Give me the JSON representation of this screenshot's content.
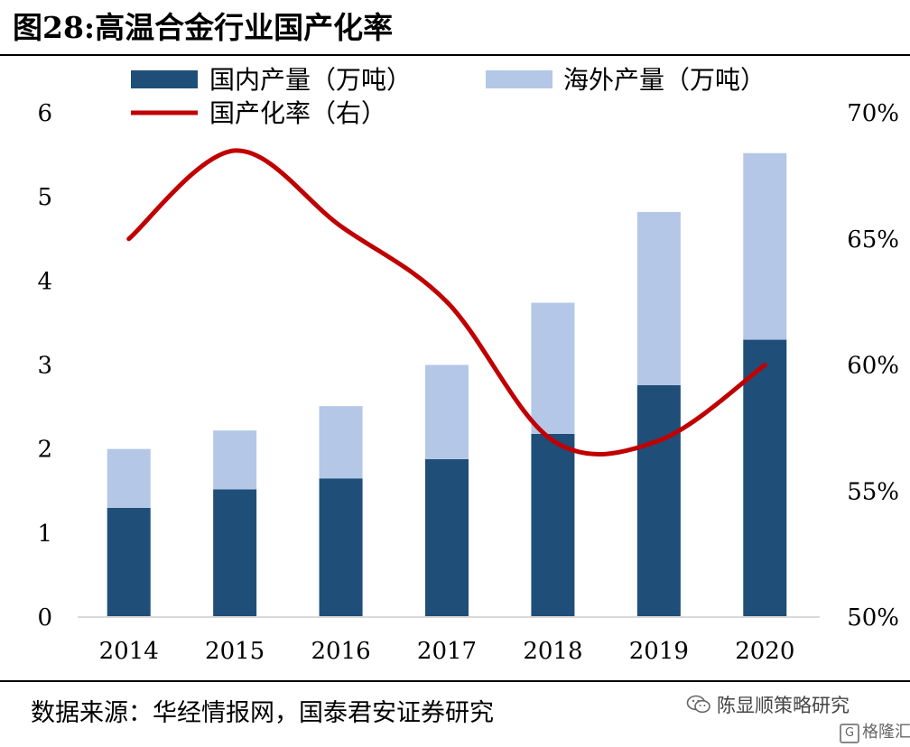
{
  "title": "图28:高温合金行业国产化率",
  "source": "数据来源：华经情报网，国泰君安证券研究",
  "watermark": "陈显顺策略研究",
  "logo": "格隆汇",
  "colors": {
    "domestic": "#1f4e79",
    "overseas": "#b4c7e7",
    "rate": "#c00000"
  },
  "chart_data": {
    "type": "bar",
    "stacked": true,
    "categories": [
      "2014",
      "2015",
      "2016",
      "2017",
      "2018",
      "2019",
      "2020"
    ],
    "series": [
      {
        "name": "国内产量（万吨）",
        "type": "bar",
        "axis": "left",
        "values": [
          1.3,
          1.52,
          1.65,
          1.88,
          2.18,
          2.76,
          3.3
        ]
      },
      {
        "name": "海外产量（万吨）",
        "type": "bar",
        "axis": "left",
        "values": [
          0.7,
          0.7,
          0.86,
          1.12,
          1.56,
          2.06,
          2.22
        ]
      },
      {
        "name": "国产化率（右）",
        "type": "line",
        "axis": "right",
        "smooth": true,
        "values": [
          65,
          68.5,
          65.5,
          62.5,
          57,
          57,
          60
        ]
      }
    ],
    "y_left": {
      "min": 0,
      "max": 6,
      "ticks": [
        "0",
        "1",
        "2",
        "3",
        "4",
        "5",
        "6"
      ]
    },
    "y_right": {
      "min": 50,
      "max": 70,
      "ticks": [
        "50%",
        "55%",
        "60%",
        "65%",
        "70%"
      ]
    },
    "legend_position": "top",
    "grid": false
  }
}
